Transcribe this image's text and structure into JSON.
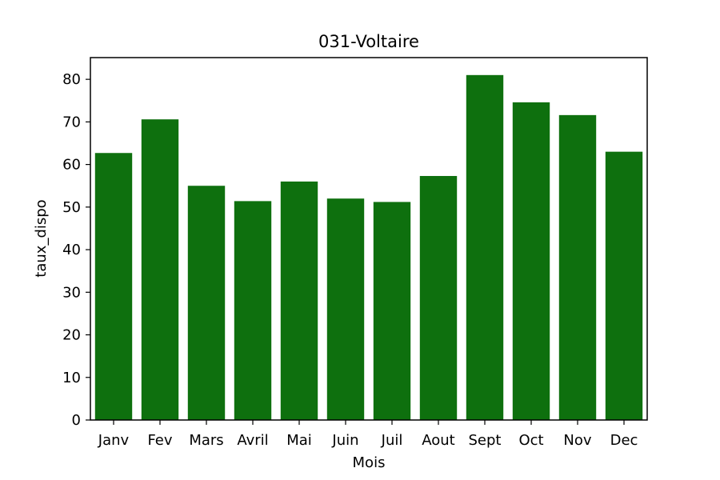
{
  "chart_data": {
    "type": "bar",
    "title": "031-Voltaire",
    "xlabel": "Mois",
    "ylabel": "taux_dispo",
    "categories": [
      "Janv",
      "Fev",
      "Mars",
      "Avril",
      "Mai",
      "Juin",
      "Juil",
      "Aout",
      "Sept",
      "Oct",
      "Nov",
      "Dec"
    ],
    "values": [
      62.7,
      70.6,
      55.0,
      51.4,
      56.0,
      52.0,
      51.2,
      57.3,
      81.0,
      74.6,
      71.6,
      63.0
    ],
    "ylim": [
      0,
      85.1
    ],
    "yticks": [
      "0",
      "10",
      "20",
      "30",
      "40",
      "50",
      "60",
      "70",
      "80"
    ],
    "bar_color": "#0e700e",
    "grid": false,
    "legend": "none"
  }
}
